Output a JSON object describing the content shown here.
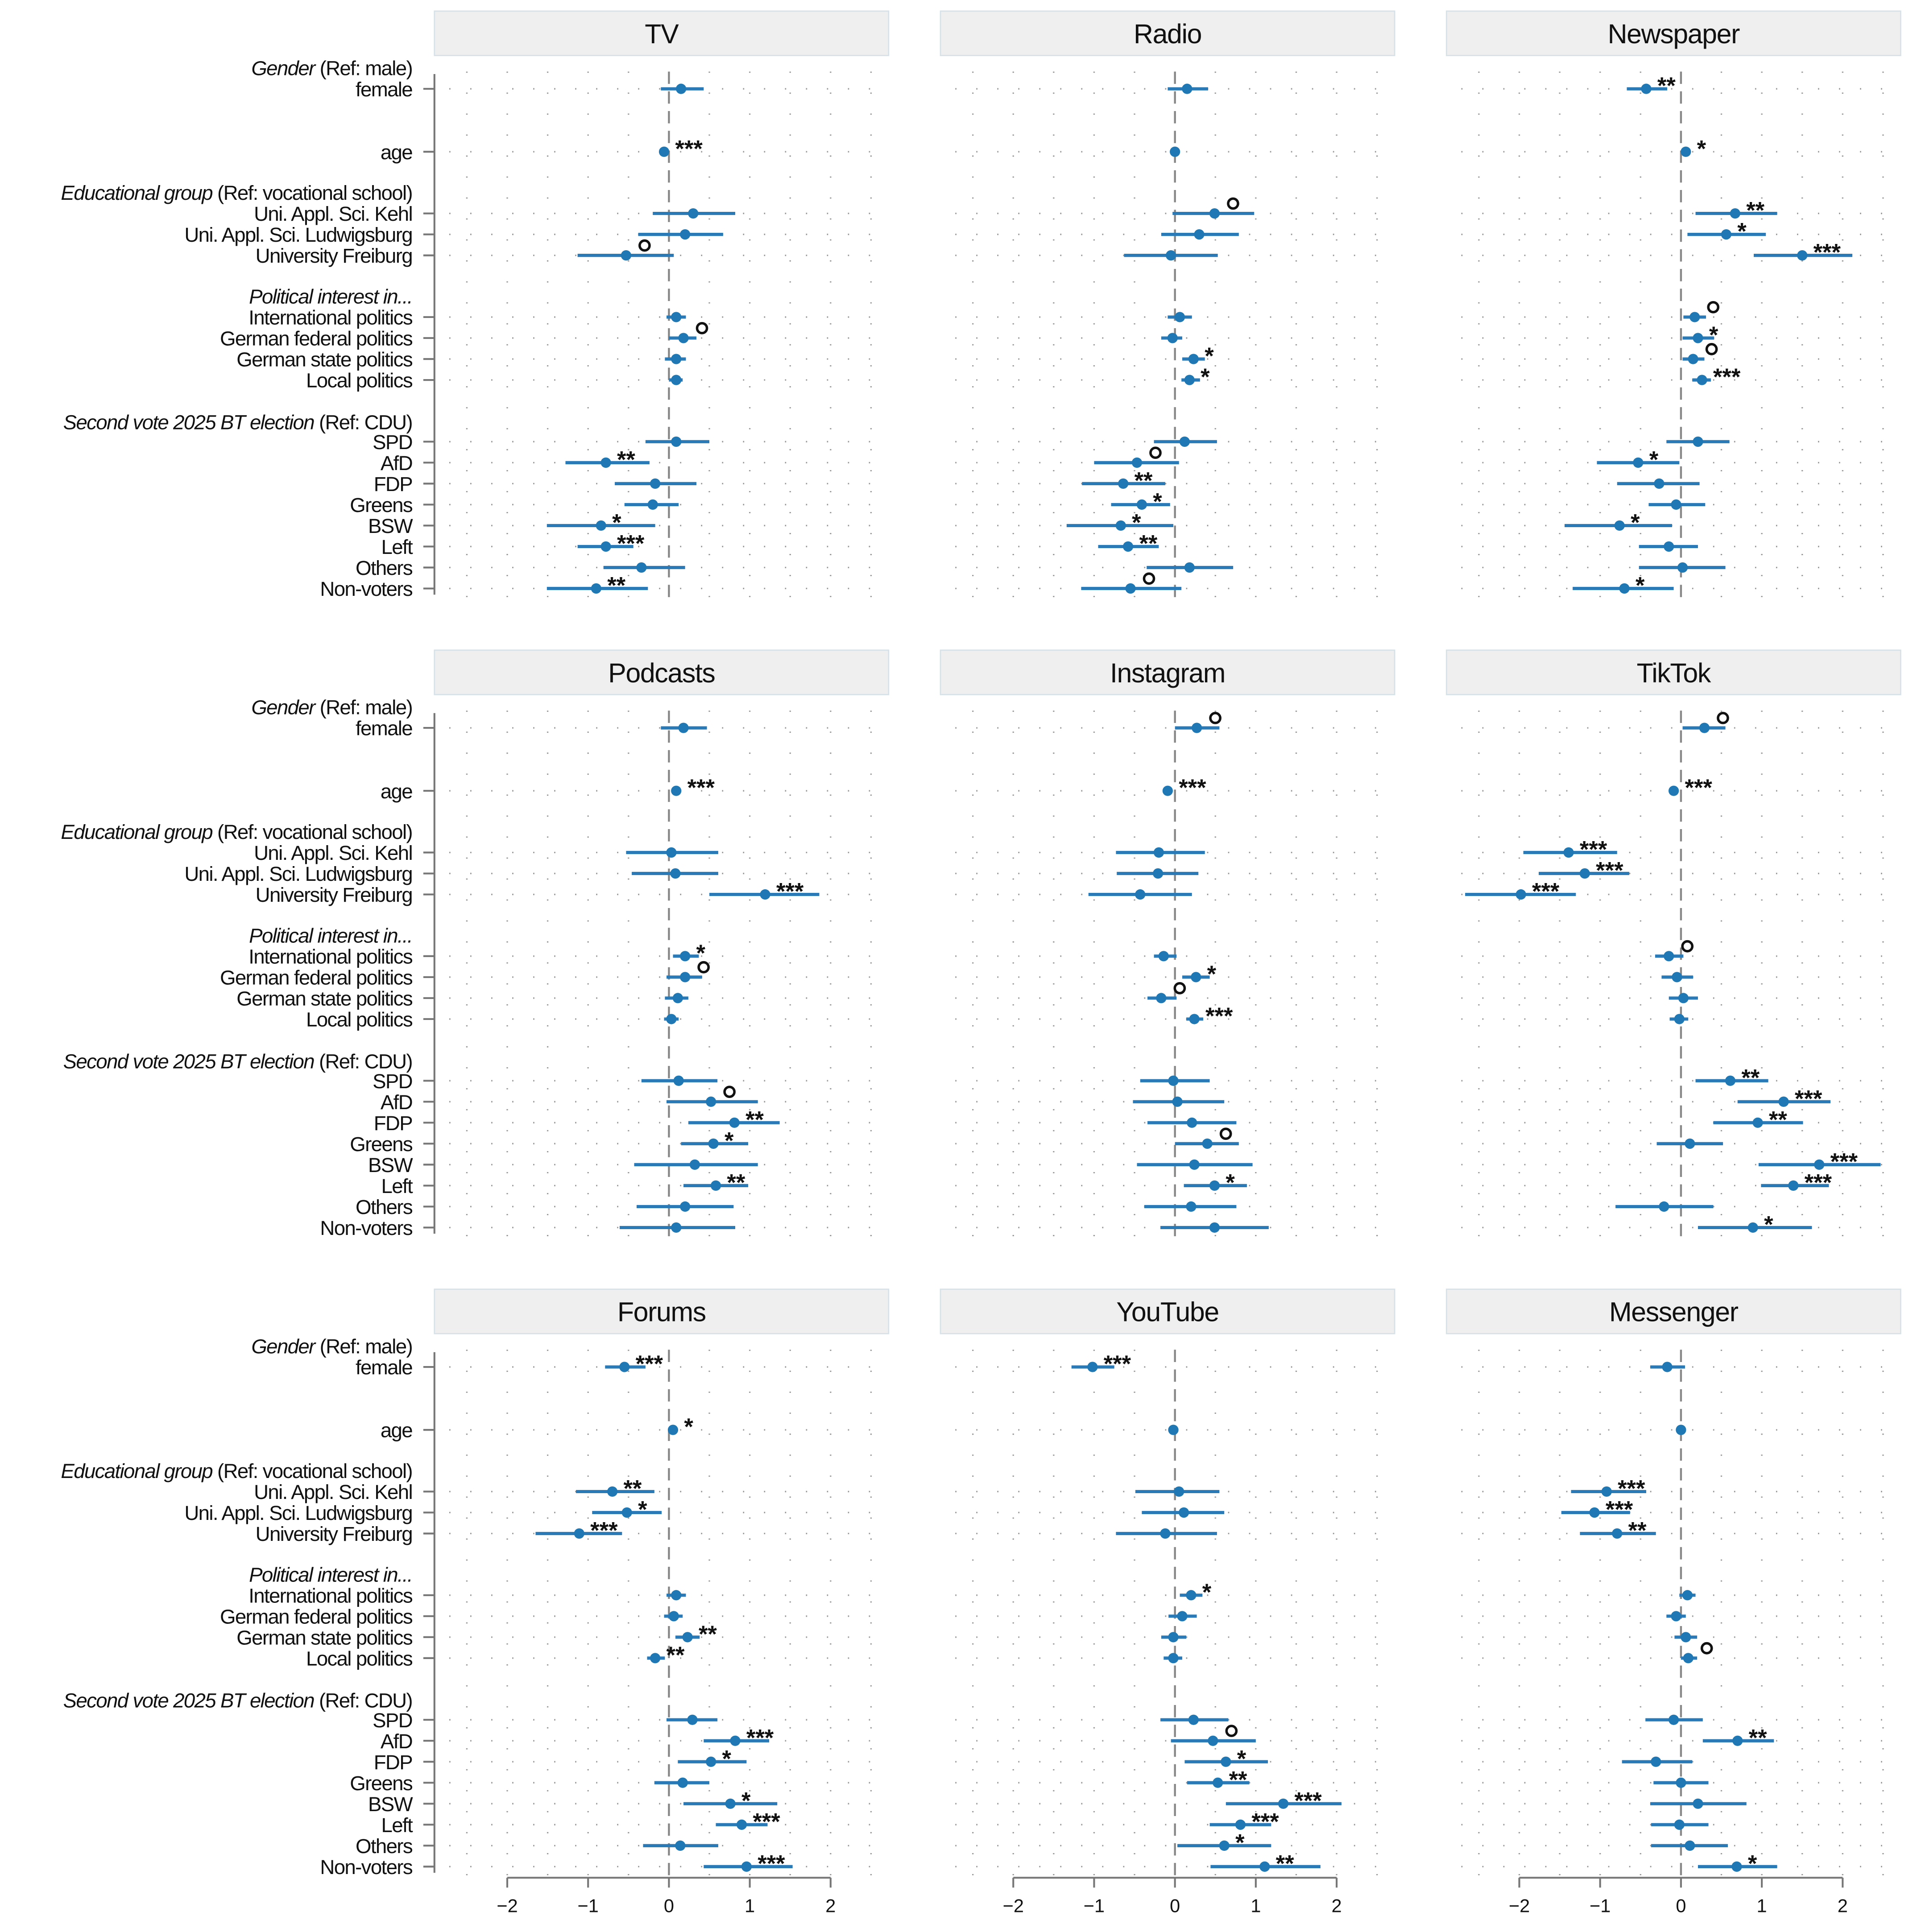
{
  "chart_data": {
    "type": "coefficient-plot",
    "xlim": [
      -2.7,
      2.6
    ],
    "xticks": [
      "−2",
      "−1",
      "0",
      "1",
      "2"
    ],
    "xtick_values": [
      -2,
      -1,
      0,
      1,
      2
    ],
    "reference_line": 0,
    "grid": "dotted",
    "group_headers": [
      {
        "italic": "Gender",
        "plain": " (Ref: male)"
      },
      {
        "italic": "Educational group",
        "plain": " (Ref: vocational school)"
      },
      {
        "italic": "Political interest in...",
        "plain": ""
      },
      {
        "italic": "Second vote 2025 BT election",
        "plain": " (Ref: CDU)"
      }
    ],
    "row_labels": [
      "female",
      "age",
      "Uni. Appl. Sci. Kehl",
      "Uni. Appl. Sci. Ludwigsburg",
      "University Freiburg",
      "International politics",
      "German federal politics",
      "German state politics",
      "Local politics",
      "SPD",
      "AfD",
      "FDP",
      "Greens",
      "BSW",
      "Left",
      "Others",
      "Non-voters"
    ],
    "fields": [
      "estimate",
      "ci_low",
      "ci_high",
      "significance"
    ],
    "panels": [
      {
        "title": "TV",
        "rows": [
          [
            0.15,
            -0.1,
            0.43,
            ""
          ],
          [
            -0.06,
            -0.08,
            -0.04,
            "***"
          ],
          [
            0.3,
            -0.2,
            0.82,
            ""
          ],
          [
            0.2,
            -0.38,
            0.67,
            ""
          ],
          [
            -0.53,
            -1.13,
            0.06,
            "o"
          ],
          [
            0.09,
            -0.03,
            0.21,
            ""
          ],
          [
            0.18,
            0,
            0.34,
            "o"
          ],
          [
            0.09,
            -0.05,
            0.21,
            ""
          ],
          [
            0.09,
            0,
            0.17,
            ""
          ],
          [
            0.09,
            -0.29,
            0.5,
            ""
          ],
          [
            -0.78,
            -1.28,
            -0.24,
            "**"
          ],
          [
            -0.17,
            -0.67,
            0.34,
            ""
          ],
          [
            -0.2,
            -0.55,
            0.12,
            ""
          ],
          [
            -0.84,
            -1.51,
            -0.17,
            "*"
          ],
          [
            -0.78,
            -1.13,
            -0.44,
            "***"
          ],
          [
            -0.34,
            -0.81,
            0.2,
            ""
          ],
          [
            -0.9,
            -1.51,
            -0.26,
            "**"
          ]
        ]
      },
      {
        "title": "Radio",
        "rows": [
          [
            0.15,
            -0.09,
            0.41,
            ""
          ],
          [
            0,
            -0.02,
            0.02,
            ""
          ],
          [
            0.49,
            -0.03,
            0.98,
            "o"
          ],
          [
            0.3,
            -0.17,
            0.79,
            ""
          ],
          [
            -0.05,
            -0.63,
            0.53,
            ""
          ],
          [
            0.06,
            -0.09,
            0.21,
            ""
          ],
          [
            -0.03,
            -0.17,
            0.09,
            ""
          ],
          [
            0.23,
            0.09,
            0.37,
            "*"
          ],
          [
            0.18,
            0.08,
            0.31,
            "*"
          ],
          [
            0.12,
            -0.26,
            0.52,
            ""
          ],
          [
            -0.47,
            -1.0,
            0.05,
            "o"
          ],
          [
            -0.64,
            -1.15,
            -0.12,
            "**"
          ],
          [
            -0.41,
            -0.79,
            -0.06,
            "*"
          ],
          [
            -0.67,
            -1.34,
            -0.02,
            "*"
          ],
          [
            -0.58,
            -0.95,
            -0.2,
            "**"
          ],
          [
            0.18,
            -0.35,
            0.72,
            ""
          ],
          [
            -0.55,
            -1.16,
            0.08,
            "o"
          ]
        ]
      },
      {
        "title": "Newspaper",
        "rows": [
          [
            -0.43,
            -0.67,
            -0.17,
            "**"
          ],
          [
            0.06,
            0.04,
            0.08,
            "*"
          ],
          [
            0.67,
            0.18,
            1.19,
            "**"
          ],
          [
            0.56,
            0.08,
            1.05,
            "*"
          ],
          [
            1.5,
            0.9,
            2.12,
            "***"
          ],
          [
            0.17,
            0.03,
            0.31,
            "o"
          ],
          [
            0.21,
            0.02,
            0.41,
            "*"
          ],
          [
            0.15,
            0.02,
            0.29,
            "o"
          ],
          [
            0.26,
            0.14,
            0.37,
            "***"
          ],
          [
            0.21,
            -0.18,
            0.6,
            ""
          ],
          [
            -0.53,
            -1.04,
            -0.02,
            "*"
          ],
          [
            -0.27,
            -0.79,
            0.23,
            ""
          ],
          [
            -0.06,
            -0.4,
            0.3,
            ""
          ],
          [
            -0.76,
            -1.44,
            -0.11,
            "*"
          ],
          [
            -0.15,
            -0.52,
            0.21,
            ""
          ],
          [
            0.02,
            -0.52,
            0.55,
            ""
          ],
          [
            -0.7,
            -1.34,
            -0.09,
            "*"
          ]
        ]
      },
      {
        "title": "Podcasts",
        "rows": [
          [
            0.18,
            -0.1,
            0.47,
            ""
          ],
          [
            0.09,
            0.07,
            0.11,
            "***"
          ],
          [
            0.03,
            -0.53,
            0.61,
            ""
          ],
          [
            0.08,
            -0.46,
            0.61,
            ""
          ],
          [
            1.19,
            0.5,
            1.86,
            "***"
          ],
          [
            0.2,
            0.05,
            0.37,
            "*"
          ],
          [
            0.2,
            -0.03,
            0.41,
            "o"
          ],
          [
            0.11,
            -0.05,
            0.24,
            ""
          ],
          [
            0.03,
            -0.06,
            0.12,
            ""
          ],
          [
            0.12,
            -0.34,
            0.6,
            ""
          ],
          [
            0.52,
            -0.03,
            1.1,
            "o"
          ],
          [
            0.81,
            0.24,
            1.37,
            "**"
          ],
          [
            0.55,
            0.15,
            0.98,
            "*"
          ],
          [
            0.32,
            -0.43,
            1.1,
            ""
          ],
          [
            0.58,
            0.18,
            0.98,
            "**"
          ],
          [
            0.2,
            -0.4,
            0.8,
            ""
          ],
          [
            0.09,
            -0.61,
            0.82,
            ""
          ]
        ]
      },
      {
        "title": "Instagram",
        "rows": [
          [
            0.27,
            0,
            0.55,
            "o"
          ],
          [
            -0.09,
            -0.11,
            -0.07,
            "***"
          ],
          [
            -0.2,
            -0.73,
            0.37,
            ""
          ],
          [
            -0.21,
            -0.72,
            0.29,
            ""
          ],
          [
            -0.43,
            -1.07,
            0.21,
            ""
          ],
          [
            -0.14,
            -0.26,
            0.02,
            ""
          ],
          [
            0.26,
            0.09,
            0.43,
            "*"
          ],
          [
            -0.17,
            -0.34,
            0.02,
            "o"
          ],
          [
            0.24,
            0.14,
            0.35,
            "***"
          ],
          [
            -0.02,
            -0.43,
            0.43,
            ""
          ],
          [
            0.03,
            -0.52,
            0.61,
            ""
          ],
          [
            0.21,
            -0.34,
            0.76,
            ""
          ],
          [
            0.4,
            0,
            0.79,
            "o"
          ],
          [
            0.24,
            -0.47,
            0.96,
            ""
          ],
          [
            0.49,
            0.11,
            0.89,
            "*"
          ],
          [
            0.2,
            -0.38,
            0.76,
            ""
          ],
          [
            0.49,
            -0.18,
            1.16,
            ""
          ]
        ]
      },
      {
        "title": "TikTok",
        "rows": [
          [
            0.29,
            0.02,
            0.55,
            "o"
          ],
          [
            -0.09,
            -0.11,
            -0.07,
            "***"
          ],
          [
            -1.39,
            -1.95,
            -0.79,
            "***"
          ],
          [
            -1.19,
            -1.76,
            -0.64,
            "***"
          ],
          [
            -1.98,
            -2.67,
            -1.3,
            "***"
          ],
          [
            -0.15,
            -0.32,
            0.03,
            "o"
          ],
          [
            -0.05,
            -0.24,
            0.15,
            ""
          ],
          [
            0.03,
            -0.15,
            0.21,
            ""
          ],
          [
            -0.02,
            -0.14,
            0.09,
            ""
          ],
          [
            0.61,
            0.18,
            1.08,
            "**"
          ],
          [
            1.27,
            0.7,
            1.85,
            "***"
          ],
          [
            0.95,
            0.4,
            1.51,
            "**"
          ],
          [
            0.11,
            -0.3,
            0.52,
            ""
          ],
          [
            1.71,
            0.96,
            2.47,
            "***"
          ],
          [
            1.39,
            0.99,
            1.83,
            "***"
          ],
          [
            -0.21,
            -0.81,
            0.4,
            ""
          ],
          [
            0.89,
            0.21,
            1.62,
            "*"
          ]
        ]
      },
      {
        "title": "Forums",
        "rows": [
          [
            -0.55,
            -0.79,
            -0.29,
            "***"
          ],
          [
            0.05,
            0.03,
            0.07,
            "*"
          ],
          [
            -0.7,
            -1.15,
            -0.18,
            "**"
          ],
          [
            -0.52,
            -0.95,
            -0.09,
            "*"
          ],
          [
            -1.11,
            -1.65,
            -0.58,
            "***"
          ],
          [
            0.09,
            -0.03,
            0.21,
            ""
          ],
          [
            0.06,
            -0.06,
            0.17,
            ""
          ],
          [
            0.23,
            0.08,
            0.38,
            "**"
          ],
          [
            -0.17,
            -0.27,
            -0.05,
            "**"
          ],
          [
            0.29,
            -0.03,
            0.6,
            ""
          ],
          [
            0.82,
            0.43,
            1.24,
            "***"
          ],
          [
            0.52,
            0.11,
            0.96,
            "*"
          ],
          [
            0.17,
            -0.18,
            0.5,
            ""
          ],
          [
            0.76,
            0.18,
            1.34,
            "*"
          ],
          [
            0.9,
            0.58,
            1.22,
            "***"
          ],
          [
            0.14,
            -0.32,
            0.61,
            ""
          ],
          [
            0.96,
            0.43,
            1.53,
            "***"
          ]
        ]
      },
      {
        "title": "YouTube",
        "rows": [
          [
            -1.02,
            -1.28,
            -0.75,
            "***"
          ],
          [
            -0.02,
            -0.04,
            0,
            ""
          ],
          [
            0.05,
            -0.49,
            0.55,
            ""
          ],
          [
            0.11,
            -0.41,
            0.61,
            ""
          ],
          [
            -0.12,
            -0.73,
            0.52,
            ""
          ],
          [
            0.2,
            0.06,
            0.34,
            "*"
          ],
          [
            0.09,
            -0.08,
            0.27,
            ""
          ],
          [
            -0.02,
            -0.17,
            0.14,
            ""
          ],
          [
            -0.02,
            -0.14,
            0.09,
            ""
          ],
          [
            0.23,
            -0.18,
            0.66,
            ""
          ],
          [
            0.47,
            -0.05,
            1.0,
            "o"
          ],
          [
            0.63,
            0.12,
            1.15,
            "*"
          ],
          [
            0.53,
            0.15,
            0.92,
            "**"
          ],
          [
            1.34,
            0.63,
            2.06,
            "***"
          ],
          [
            0.81,
            0.43,
            1.19,
            "***"
          ],
          [
            0.61,
            0.03,
            1.19,
            "*"
          ],
          [
            1.11,
            0.44,
            1.8,
            "**"
          ]
        ]
      },
      {
        "title": "Messenger",
        "rows": [
          [
            -0.17,
            -0.38,
            0.05,
            ""
          ],
          [
            0,
            -0.02,
            0.02,
            ""
          ],
          [
            -0.92,
            -1.36,
            -0.43,
            "***"
          ],
          [
            -1.07,
            -1.48,
            -0.63,
            "***"
          ],
          [
            -0.79,
            -1.25,
            -0.31,
            "**"
          ],
          [
            0.08,
            -0.02,
            0.18,
            ""
          ],
          [
            -0.06,
            -0.18,
            0.06,
            ""
          ],
          [
            0.06,
            -0.08,
            0.2,
            ""
          ],
          [
            0.09,
            0,
            0.2,
            "o"
          ],
          [
            -0.09,
            -0.44,
            0.27,
            ""
          ],
          [
            0.7,
            0.27,
            1.15,
            "**"
          ],
          [
            -0.31,
            -0.73,
            0.14,
            ""
          ],
          [
            0,
            -0.34,
            0.34,
            ""
          ],
          [
            0.21,
            -0.38,
            0.81,
            ""
          ],
          [
            -0.02,
            -0.37,
            0.34,
            ""
          ],
          [
            0.11,
            -0.37,
            0.58,
            ""
          ],
          [
            0.69,
            0.21,
            1.19,
            "*"
          ]
        ]
      }
    ]
  },
  "colors": {
    "point": "#1f78b4",
    "ci": "#2a7ab8",
    "header_bg": "#efefef",
    "header_border": "#d6e2e8",
    "reference": "#888888",
    "grid": "#999999"
  }
}
